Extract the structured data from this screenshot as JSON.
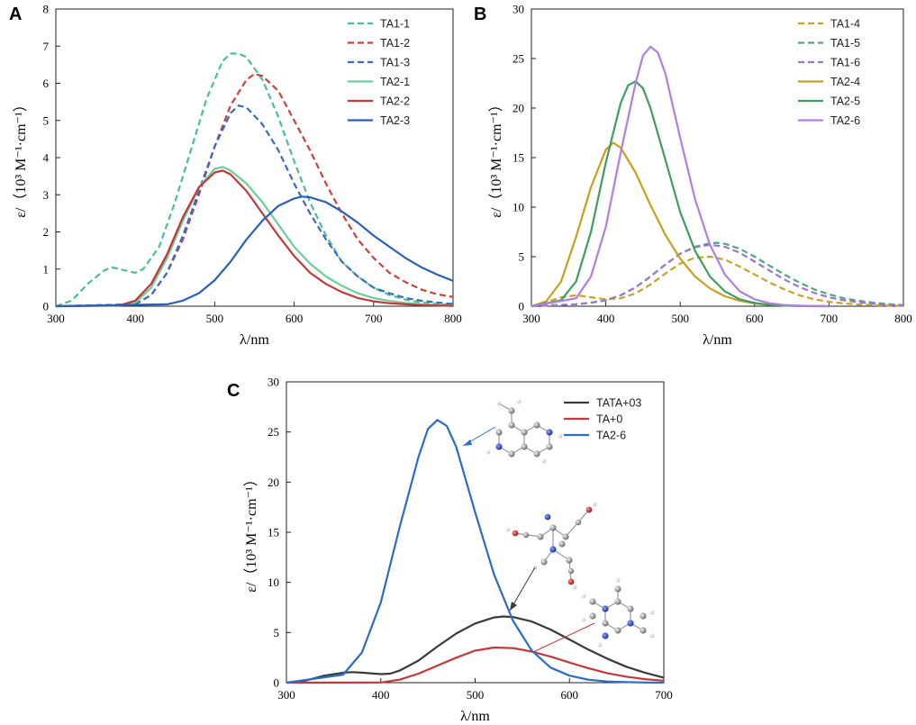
{
  "chart_data": [
    {
      "panel": "A",
      "type": "line",
      "xlabel": "λ/nm",
      "ylabel": "ε/（10³ M⁻¹·cm⁻¹）",
      "xlim": [
        300,
        800
      ],
      "ylim": [
        0,
        8
      ],
      "xticks": [
        300,
        400,
        500,
        600,
        700,
        800
      ],
      "yticks": [
        0,
        1,
        2,
        3,
        4,
        5,
        6,
        7,
        8
      ],
      "legend_position": "top-right",
      "series": [
        {
          "name": "TA1-1",
          "color": "#4dbf8f",
          "dash": true,
          "x": [
            300,
            320,
            340,
            360,
            370,
            380,
            400,
            410,
            430,
            450,
            470,
            490,
            510,
            520,
            530,
            540,
            560,
            580,
            600,
            620,
            640,
            660,
            680,
            700,
            720,
            740,
            760,
            780,
            800
          ],
          "y": [
            0,
            0.15,
            0.6,
            0.95,
            1.05,
            1.0,
            0.9,
            1.0,
            1.6,
            2.8,
            4.2,
            5.6,
            6.6,
            6.8,
            6.8,
            6.7,
            6.1,
            5.1,
            3.9,
            2.8,
            1.9,
            1.2,
            0.8,
            0.5,
            0.3,
            0.18,
            0.1,
            0.06,
            0.03
          ]
        },
        {
          "name": "TA1-2",
          "color": "#c8423f",
          "dash": true,
          "x": [
            300,
            400,
            420,
            440,
            460,
            480,
            500,
            520,
            540,
            550,
            560,
            580,
            600,
            620,
            640,
            660,
            680,
            700,
            720,
            740,
            760,
            780,
            800
          ],
          "y": [
            0,
            0.05,
            0.3,
            0.9,
            1.8,
            3.0,
            4.3,
            5.4,
            6.1,
            6.25,
            6.2,
            5.8,
            5.0,
            4.2,
            3.3,
            2.5,
            1.8,
            1.3,
            0.9,
            0.65,
            0.45,
            0.32,
            0.25
          ]
        },
        {
          "name": "TA1-3",
          "color": "#3a6bbf",
          "dash": true,
          "x": [
            300,
            400,
            420,
            440,
            460,
            480,
            500,
            520,
            530,
            540,
            560,
            580,
            600,
            620,
            640,
            660,
            680,
            700,
            720,
            740,
            760,
            780,
            800
          ],
          "y": [
            0,
            0.05,
            0.3,
            0.9,
            1.9,
            3.1,
            4.3,
            5.2,
            5.4,
            5.35,
            4.9,
            4.2,
            3.3,
            2.5,
            1.8,
            1.2,
            0.8,
            0.5,
            0.35,
            0.22,
            0.15,
            0.1,
            0.06
          ]
        },
        {
          "name": "TA2-1",
          "color": "#6ccf9a",
          "dash": false,
          "x": [
            300,
            380,
            400,
            420,
            440,
            460,
            480,
            500,
            510,
            520,
            540,
            560,
            580,
            600,
            620,
            640,
            660,
            680,
            700,
            720,
            740,
            760,
            780,
            800
          ],
          "y": [
            0,
            0.02,
            0.1,
            0.5,
            1.3,
            2.3,
            3.2,
            3.7,
            3.75,
            3.65,
            3.3,
            2.8,
            2.2,
            1.6,
            1.15,
            0.8,
            0.55,
            0.35,
            0.22,
            0.14,
            0.09,
            0.05,
            0.03,
            0.02
          ]
        },
        {
          "name": "TA2-2",
          "color": "#c0393b",
          "dash": false,
          "x": [
            300,
            380,
            400,
            420,
            440,
            460,
            480,
            500,
            510,
            520,
            540,
            560,
            580,
            600,
            620,
            640,
            660,
            680,
            700,
            720,
            740,
            760,
            780,
            800
          ],
          "y": [
            0,
            0.02,
            0.15,
            0.6,
            1.4,
            2.4,
            3.2,
            3.6,
            3.65,
            3.55,
            3.1,
            2.5,
            1.9,
            1.35,
            0.9,
            0.6,
            0.38,
            0.22,
            0.13,
            0.08,
            0.05,
            0.03,
            0.02,
            0.01
          ]
        },
        {
          "name": "TA2-3",
          "color": "#2c5fb8",
          "dash": false,
          "x": [
            300,
            440,
            460,
            480,
            500,
            520,
            540,
            560,
            580,
            600,
            610,
            620,
            640,
            660,
            680,
            700,
            720,
            740,
            760,
            780,
            800
          ],
          "y": [
            0,
            0.05,
            0.15,
            0.35,
            0.7,
            1.2,
            1.8,
            2.3,
            2.7,
            2.9,
            2.95,
            2.93,
            2.8,
            2.55,
            2.25,
            1.9,
            1.6,
            1.3,
            1.05,
            0.85,
            0.68
          ]
        }
      ]
    },
    {
      "panel": "B",
      "type": "line",
      "xlabel": "λ/nm",
      "ylabel": "ε/（10³ M⁻¹·cm⁻¹）",
      "xlim": [
        300,
        800
      ],
      "ylim": [
        0,
        30
      ],
      "xticks": [
        300,
        400,
        500,
        600,
        700,
        800
      ],
      "yticks": [
        0,
        5,
        10,
        15,
        20,
        25,
        30
      ],
      "legend_position": "top-right",
      "series": [
        {
          "name": "TA1-4",
          "color": "#c9a227",
          "dash": true,
          "x": [
            300,
            320,
            340,
            360,
            380,
            400,
            420,
            440,
            460,
            480,
            500,
            520,
            540,
            560,
            580,
            600,
            620,
            640,
            660,
            680,
            700,
            720,
            740,
            760,
            780,
            800
          ],
          "y": [
            0,
            0.4,
            0.9,
            1.1,
            0.9,
            0.7,
            0.8,
            1.3,
            2.2,
            3.3,
            4.3,
            4.9,
            5.0,
            4.7,
            4.0,
            3.2,
            2.4,
            1.7,
            1.1,
            0.7,
            0.45,
            0.28,
            0.17,
            0.1,
            0.06,
            0.03
          ]
        },
        {
          "name": "TA1-5",
          "color": "#4fa97a",
          "dash": true,
          "x": [
            300,
            360,
            380,
            400,
            420,
            440,
            460,
            480,
            500,
            520,
            540,
            550,
            560,
            580,
            600,
            620,
            640,
            660,
            680,
            700,
            720,
            740,
            760,
            780,
            800
          ],
          "y": [
            0,
            0.2,
            0.35,
            0.6,
            1.1,
            1.9,
            3.0,
            4.2,
            5.3,
            6.0,
            6.35,
            6.4,
            6.3,
            5.8,
            5.0,
            4.1,
            3.2,
            2.4,
            1.7,
            1.2,
            0.8,
            0.55,
            0.35,
            0.22,
            0.12
          ]
        },
        {
          "name": "TA1-6",
          "color": "#9b77d0",
          "dash": true,
          "x": [
            300,
            360,
            380,
            400,
            420,
            440,
            460,
            480,
            500,
            520,
            540,
            560,
            580,
            600,
            620,
            640,
            660,
            680,
            700,
            720,
            740,
            760,
            780,
            800
          ],
          "y": [
            0,
            0.2,
            0.35,
            0.6,
            1.1,
            1.9,
            3.0,
            4.2,
            5.3,
            5.95,
            6.2,
            6.0,
            5.4,
            4.5,
            3.6,
            2.7,
            1.95,
            1.35,
            0.9,
            0.6,
            0.4,
            0.25,
            0.15,
            0.08
          ]
        },
        {
          "name": "TA2-4",
          "color": "#c7a01e",
          "dash": false,
          "x": [
            300,
            320,
            340,
            360,
            380,
            400,
            410,
            420,
            440,
            460,
            480,
            500,
            520,
            540,
            560,
            580,
            600,
            620,
            640,
            660,
            680,
            700
          ],
          "y": [
            0,
            0.5,
            2.5,
            7.0,
            12.0,
            15.8,
            16.5,
            16.0,
            13.5,
            10.2,
            7.2,
            4.8,
            3.0,
            1.8,
            1.0,
            0.55,
            0.28,
            0.14,
            0.07,
            0.03,
            0.01,
            0
          ]
        },
        {
          "name": "TA2-5",
          "color": "#3e9d60",
          "dash": false,
          "x": [
            300,
            340,
            360,
            380,
            400,
            420,
            430,
            440,
            450,
            460,
            480,
            500,
            520,
            540,
            560,
            580,
            600,
            620,
            640,
            660,
            680,
            700
          ],
          "y": [
            0,
            0.6,
            2.5,
            7.5,
            14.5,
            20.5,
            22.3,
            22.7,
            22.0,
            20.0,
            14.8,
            9.5,
            5.6,
            3.0,
            1.5,
            0.7,
            0.32,
            0.14,
            0.06,
            0.02,
            0.01,
            0
          ]
        },
        {
          "name": "TA2-6",
          "color": "#b07fe0",
          "dash": false,
          "x": [
            300,
            360,
            380,
            400,
            420,
            440,
            450,
            460,
            470,
            480,
            500,
            520,
            540,
            560,
            580,
            600,
            620,
            640,
            660,
            680,
            700
          ],
          "y": [
            0,
            0.8,
            3.0,
            8.0,
            15.5,
            22.5,
            25.3,
            26.2,
            25.6,
            23.5,
            17.0,
            10.8,
            6.2,
            3.2,
            1.5,
            0.7,
            0.3,
            0.12,
            0.05,
            0.02,
            0
          ]
        }
      ]
    },
    {
      "panel": "C",
      "type": "line",
      "xlabel": "λ/nm",
      "ylabel": "ε/（10³ M⁻¹·cm⁻¹）",
      "xlim": [
        300,
        700
      ],
      "ylim": [
        0,
        30
      ],
      "xticks": [
        300,
        400,
        500,
        600,
        700
      ],
      "yticks": [
        0,
        5,
        10,
        15,
        20,
        25,
        30
      ],
      "legend_position": "top-right",
      "series": [
        {
          "name": "TATA+03",
          "color": "#3a3a3a",
          "dash": false,
          "x": [
            300,
            320,
            340,
            360,
            370,
            380,
            400,
            410,
            420,
            440,
            460,
            480,
            500,
            520,
            530,
            540,
            560,
            580,
            600,
            620,
            640,
            660,
            680,
            700
          ],
          "y": [
            0,
            0.2,
            0.7,
            1.0,
            1.05,
            1.0,
            0.85,
            0.9,
            1.2,
            2.2,
            3.6,
            4.9,
            5.9,
            6.5,
            6.6,
            6.55,
            6.1,
            5.3,
            4.3,
            3.3,
            2.4,
            1.6,
            1.0,
            0.5
          ]
        },
        {
          "name": "TA+0",
          "color": "#c0393b",
          "dash": false,
          "x": [
            300,
            400,
            420,
            440,
            460,
            480,
            500,
            520,
            540,
            560,
            580,
            600,
            620,
            640,
            660,
            680,
            700
          ],
          "y": [
            0,
            0.02,
            0.3,
            0.9,
            1.7,
            2.5,
            3.2,
            3.5,
            3.45,
            3.1,
            2.6,
            2.0,
            1.45,
            0.95,
            0.6,
            0.35,
            0.2
          ]
        },
        {
          "name": "TA2-6",
          "color": "#2c6cc4",
          "dash": false,
          "x": [
            300,
            360,
            380,
            400,
            420,
            440,
            450,
            460,
            470,
            480,
            500,
            520,
            540,
            560,
            580,
            600,
            620,
            640,
            660,
            680,
            700
          ],
          "y": [
            0,
            0.8,
            3.0,
            8.0,
            15.5,
            22.5,
            25.3,
            26.2,
            25.6,
            23.5,
            17.0,
            10.8,
            6.2,
            3.2,
            1.5,
            0.7,
            0.3,
            0.12,
            0.05,
            0.02,
            0
          ]
        }
      ]
    }
  ]
}
